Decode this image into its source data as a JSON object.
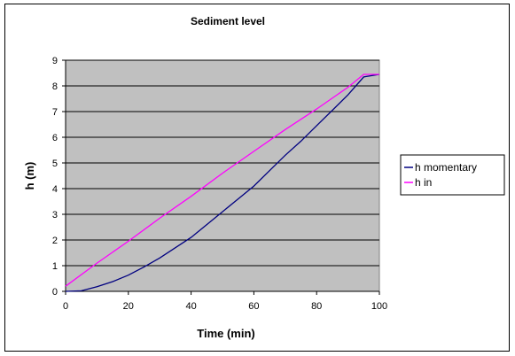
{
  "chart_data": {
    "type": "line",
    "title": "Sediment level",
    "xlabel": "Time (min)",
    "ylabel": "h (m)",
    "xlim": [
      0,
      100
    ],
    "ylim": [
      0,
      9
    ],
    "xticks": [
      0,
      20,
      40,
      60,
      80,
      100
    ],
    "yticks": [
      0,
      1,
      2,
      3,
      4,
      5,
      6,
      7,
      8,
      9
    ],
    "grid": "horizontal",
    "legend_position": "right",
    "plot_background": "#c0c0c0",
    "series": [
      {
        "name": "h momentary",
        "color": "#000080",
        "x": [
          0,
          5,
          10,
          15,
          20,
          25,
          30,
          35,
          40,
          45,
          50,
          55,
          60,
          65,
          70,
          75,
          80,
          85,
          90,
          95,
          100
        ],
        "y": [
          0,
          0.02,
          0.18,
          0.38,
          0.63,
          0.95,
          1.3,
          1.7,
          2.1,
          2.6,
          3.1,
          3.6,
          4.1,
          4.7,
          5.3,
          5.85,
          6.45,
          7.05,
          7.65,
          8.35,
          8.45
        ]
      },
      {
        "name": "h in",
        "color": "#ff00ff",
        "x": [
          0,
          10,
          20,
          30,
          40,
          50,
          60,
          70,
          80,
          90,
          95,
          100
        ],
        "y": [
          0.2,
          1.1,
          1.95,
          2.85,
          3.7,
          4.6,
          5.45,
          6.3,
          7.1,
          7.95,
          8.45,
          8.45
        ]
      }
    ]
  }
}
